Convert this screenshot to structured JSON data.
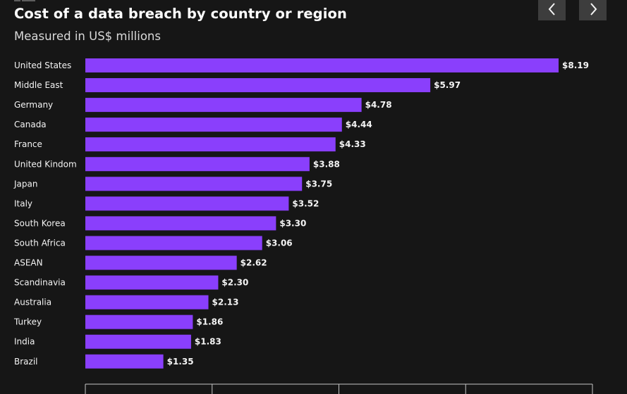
{
  "header": {
    "title": "Cost of a data breach by country or region",
    "subtitle": "Measured in US$ millions"
  },
  "navigation": {
    "prev_icon": "chevron-left-icon",
    "next_icon": "chevron-right-icon"
  },
  "colors": {
    "background": "#161616",
    "bar": "#8a3ffc",
    "text": "#f4f4f4",
    "button": "#3d3d3d"
  },
  "chart_data": {
    "type": "bar",
    "orientation": "horizontal",
    "title": "Cost of a data breach by country or region",
    "subtitle": "Measured in US$ millions",
    "xlabel": "",
    "ylabel": "",
    "value_prefix": "$",
    "xlim": [
      0,
      8
    ],
    "grid": false,
    "categories": [
      "United States",
      "Middle East",
      "Germany",
      "Canada",
      "France",
      "United Kindom",
      "Japan",
      "Italy",
      "South Korea",
      "South Africa",
      "ASEAN",
      "Scandinavia",
      "Australia",
      "Turkey",
      "India",
      "Brazil"
    ],
    "values": [
      8.19,
      5.97,
      4.78,
      4.44,
      4.33,
      3.88,
      3.75,
      3.52,
      3.3,
      3.06,
      2.62,
      2.3,
      2.13,
      1.86,
      1.83,
      1.35
    ],
    "value_labels": [
      "$8.19",
      "$5.97",
      "$4.78",
      "$4.44",
      "$4.33",
      "$3.88",
      "$3.75",
      "$3.52",
      "$3.30",
      "$3.06",
      "$2.62",
      "$2.30",
      "$2.13",
      "$1.86",
      "$1.83",
      "$1.35"
    ]
  }
}
